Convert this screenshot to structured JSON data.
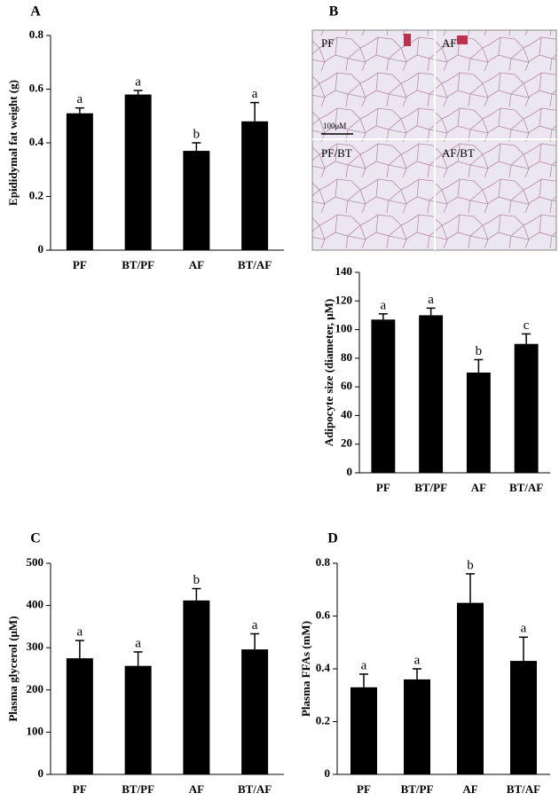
{
  "micrograph": {
    "panel_label": "B",
    "quadrants": [
      "PF",
      "AF",
      "PF/BT",
      "AF/BT"
    ],
    "scale_bar": "100μM"
  },
  "chart_data": [
    {
      "type": "bar",
      "panel_label": "A",
      "ylabel": "Epididymal fat weight (g)",
      "categories": [
        "PF",
        "BT/PF",
        "AF",
        "BT/AF"
      ],
      "values": [
        0.51,
        0.58,
        0.37,
        0.48
      ],
      "errors": [
        0.02,
        0.015,
        0.03,
        0.07
      ],
      "annotations": [
        "a",
        "a",
        "b",
        "a"
      ],
      "color": "#000000",
      "ylim": [
        0,
        0.8
      ],
      "yticks": [
        0,
        0.2,
        0.4,
        0.6,
        0.8
      ]
    },
    {
      "type": "bar",
      "ylabel": "Adipocyte size (diameter, μM)",
      "categories": [
        "PF",
        "BT/PF",
        "AF",
        "BT/AF"
      ],
      "values": [
        107,
        110,
        70,
        90
      ],
      "errors": [
        4,
        5,
        9,
        7
      ],
      "annotations": [
        "a",
        "a",
        "b",
        "c"
      ],
      "color": "#000000",
      "ylim": [
        0,
        140
      ],
      "yticks": [
        0,
        20,
        40,
        60,
        80,
        100,
        120,
        140
      ]
    },
    {
      "type": "bar",
      "panel_label": "C",
      "ylabel": "Plasma glycerol (μM)",
      "categories": [
        "PF",
        "BT/PF",
        "AF",
        "BT/AF"
      ],
      "values": [
        275,
        257,
        412,
        296
      ],
      "errors": [
        42,
        33,
        28,
        37
      ],
      "annotations": [
        "a",
        "a",
        "b",
        "a"
      ],
      "color": "#000000",
      "ylim": [
        0,
        500
      ],
      "yticks": [
        0,
        100,
        200,
        300,
        400,
        500
      ]
    },
    {
      "type": "bar",
      "panel_label": "D",
      "ylabel": "Plasma FFAs (mM)",
      "categories": [
        "PF",
        "BT/PF",
        "AF",
        "BT/AF"
      ],
      "values": [
        0.33,
        0.36,
        0.65,
        0.43
      ],
      "errors": [
        0.05,
        0.04,
        0.11,
        0.09
      ],
      "annotations": [
        "a",
        "a",
        "b",
        "a"
      ],
      "color": "#000000",
      "ylim": [
        0,
        0.8
      ],
      "yticks": [
        0,
        0.2,
        0.4,
        0.6,
        0.8
      ]
    }
  ]
}
